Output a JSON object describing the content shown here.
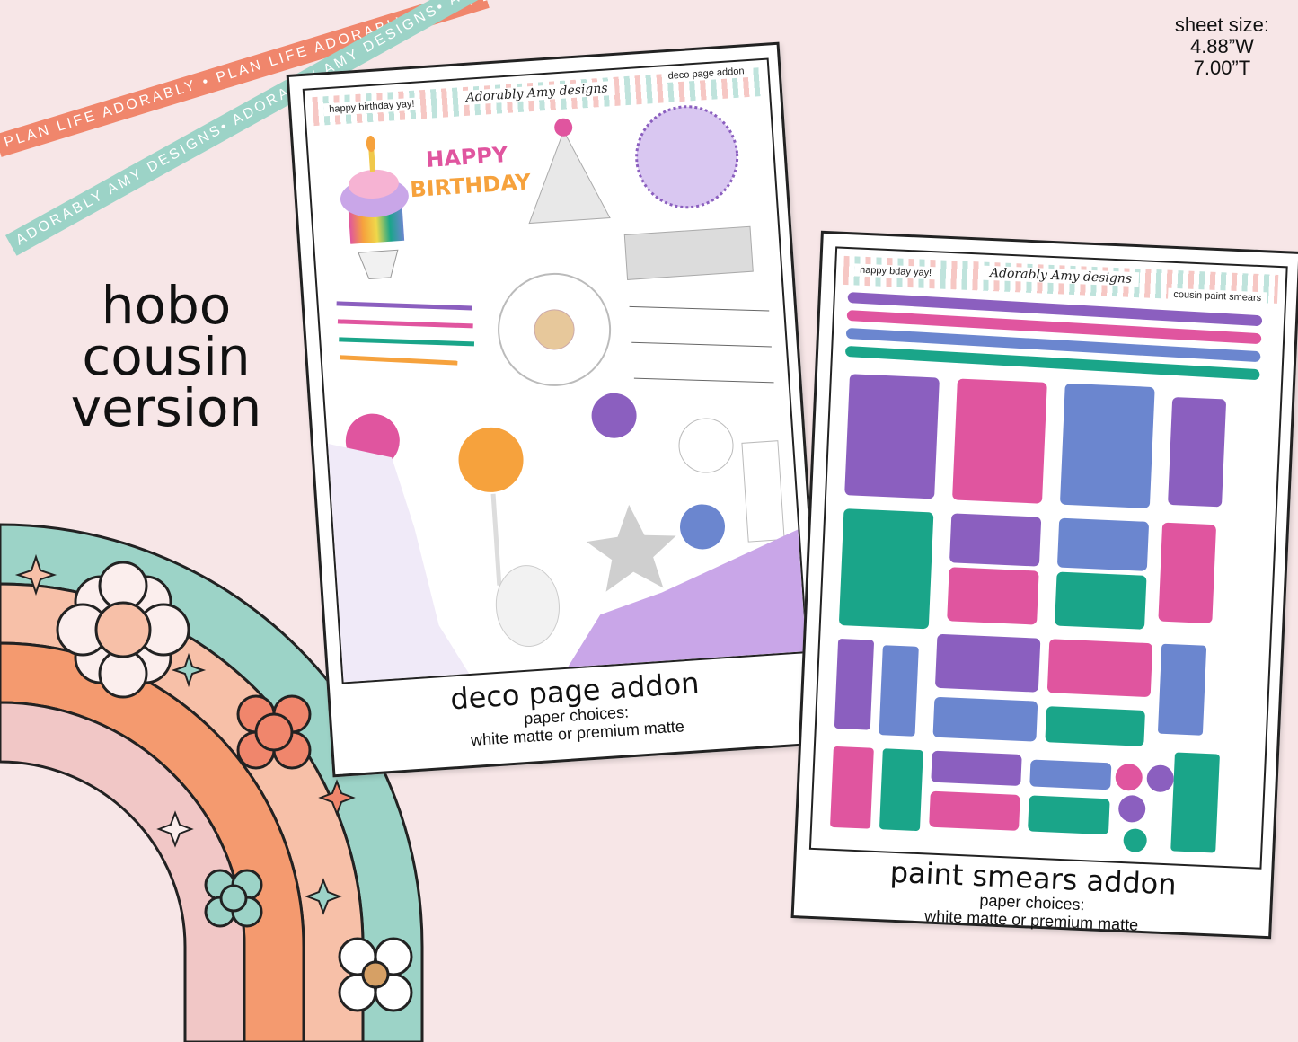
{
  "ribbons": {
    "coral_text": "PLAN LIFE ADORABLY • PLAN LIFE ADORABLY • PLAN LIFE ADORABLY",
    "teal_text": "ADORABLY AMY DESIGNS• ADORABLY AMY DESIGNS• ADORABLY AMY DESIGNS•"
  },
  "sheet_size": {
    "label": "sheet size:",
    "width": "4.88”W",
    "height": "7.00”T"
  },
  "version": {
    "line1": "hobo",
    "line2": "cousin",
    "line3": "version"
  },
  "sheets": [
    {
      "header_left": "happy birthday yay!",
      "header_logo": "Adorably Amy designs",
      "header_right": "deco page addon",
      "sticker_text_1": "HAPPY",
      "sticker_text_2": "BIRTHDAY",
      "name": "deco page addon",
      "choices_label": "paper choices:",
      "choices_value": "white matte or premium matte"
    },
    {
      "header_left": "happy bday yay!",
      "header_logo": "Adorably Amy designs",
      "header_right": "cousin paint smears",
      "name": "paint smears addon",
      "choices_label": "paper choices:",
      "choices_value": "white matte or premium matte"
    }
  ],
  "colors": {
    "background": "#f7e6e7",
    "purple": "#8b5fbf",
    "pink": "#e0559f",
    "blue": "#6b86cf",
    "green": "#1aa589",
    "coral": "#f0866c",
    "teal": "#9cd3c7"
  }
}
